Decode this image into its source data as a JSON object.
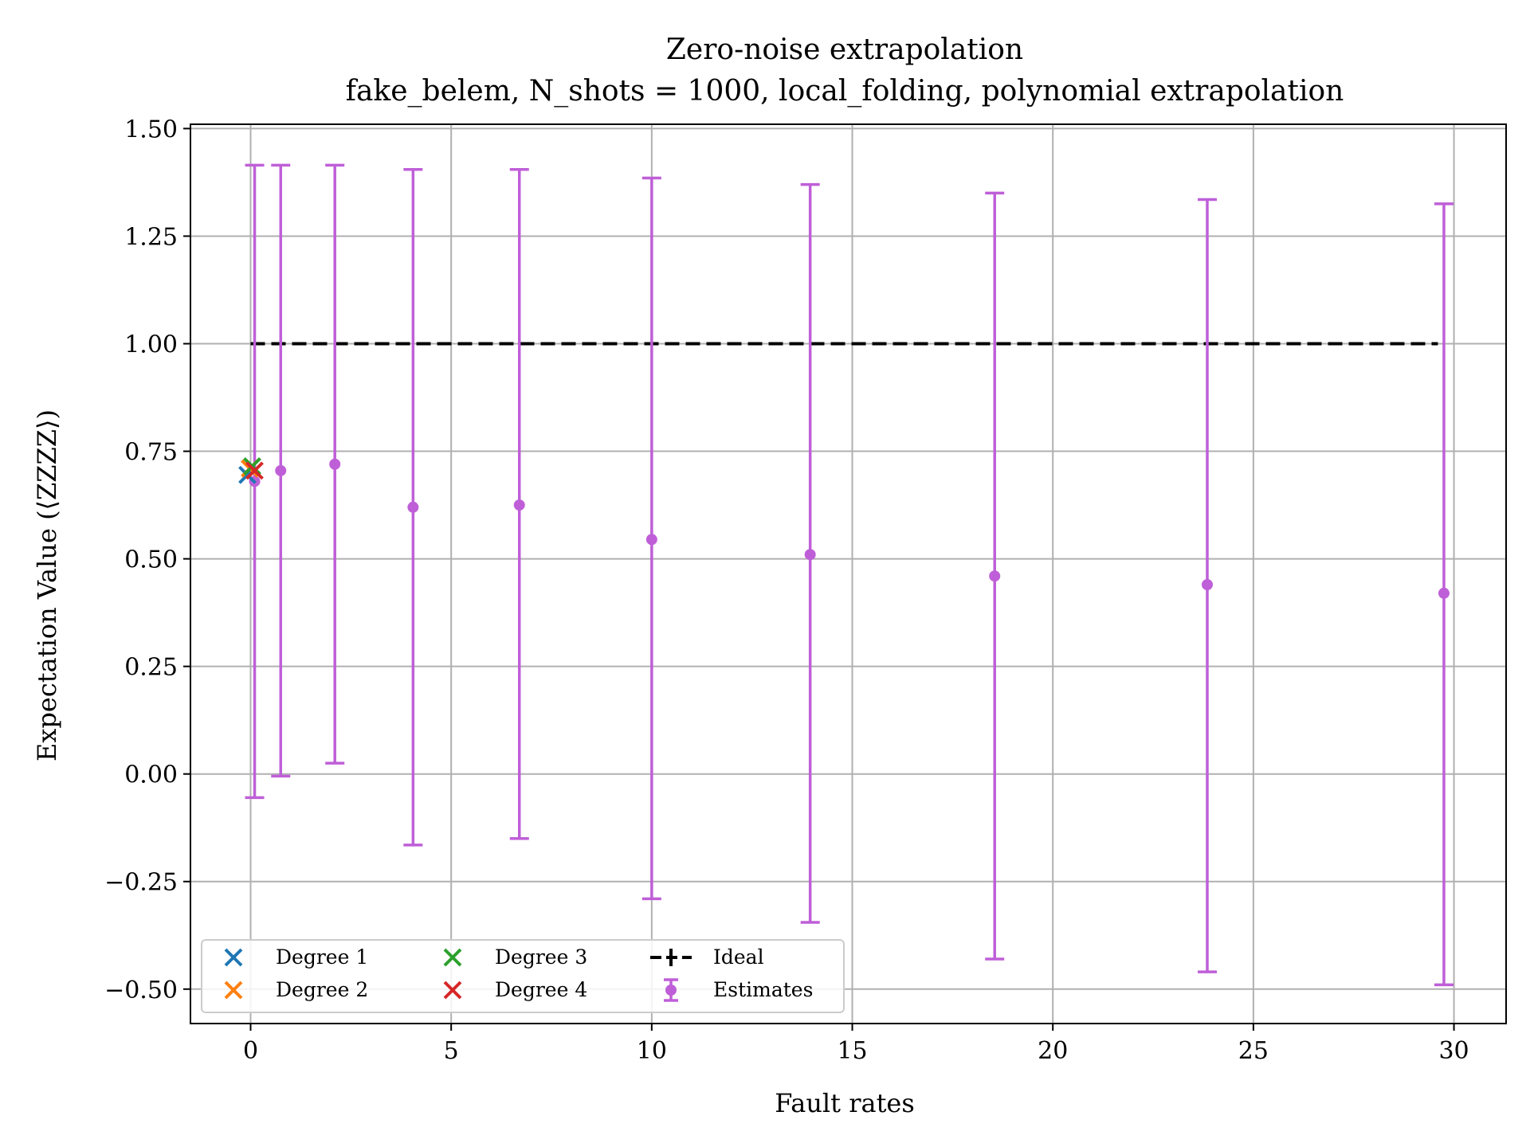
{
  "chart_data": {
    "type": "scatter",
    "title": "Zero-noise extrapolation",
    "subtitle": "fake_belem, N_shots = 1000, local_folding, polynomial extrapolation",
    "xlabel": "Fault rates",
    "ylabel": "Expectation Value (⟨ZZZZ⟩)",
    "xlim": [
      -1.5,
      31.3
    ],
    "ylim": [
      -0.58,
      1.51
    ],
    "grid": true,
    "legend_position": "lower-left",
    "x_ticks": [
      0,
      5,
      10,
      15,
      20,
      25,
      30
    ],
    "x_tick_labels": [
      "0",
      "5",
      "10",
      "15",
      "20",
      "25",
      "30"
    ],
    "y_ticks": [
      -0.5,
      -0.25,
      0,
      0.25,
      0.5,
      0.75,
      1.0,
      1.25,
      1.5
    ],
    "y_tick_labels": [
      "−0.50",
      "−0.25",
      "0.00",
      "0.25",
      "0.50",
      "0.75",
      "1.00",
      "1.25",
      "1.50"
    ],
    "ideal": {
      "name": "Ideal",
      "x": [
        0,
        29.6
      ],
      "y": 1.0,
      "color": "#000000"
    },
    "estimates": {
      "name": "Estimates",
      "color": "#bf5fd8",
      "points": [
        {
          "x": 0.1,
          "y": 0.68,
          "lo": -0.055,
          "hi": 1.415
        },
        {
          "x": 0.75,
          "y": 0.705,
          "lo": -0.005,
          "hi": 1.415
        },
        {
          "x": 2.1,
          "y": 0.72,
          "lo": 0.025,
          "hi": 1.415
        },
        {
          "x": 4.05,
          "y": 0.62,
          "lo": -0.165,
          "hi": 1.405
        },
        {
          "x": 6.7,
          "y": 0.625,
          "lo": -0.15,
          "hi": 1.405
        },
        {
          "x": 10.0,
          "y": 0.545,
          "lo": -0.29,
          "hi": 1.385
        },
        {
          "x": 13.95,
          "y": 0.51,
          "lo": -0.345,
          "hi": 1.37
        },
        {
          "x": 18.55,
          "y": 0.46,
          "lo": -0.43,
          "hi": 1.35
        },
        {
          "x": 23.85,
          "y": 0.44,
          "lo": -0.46,
          "hi": 1.335
        },
        {
          "x": 29.75,
          "y": 0.42,
          "lo": -0.49,
          "hi": 1.325
        }
      ]
    },
    "extrapolations": [
      {
        "name": "Degree 1",
        "x": 0,
        "y": 0.695,
        "color": "#1f77b4"
      },
      {
        "name": "Degree 2",
        "x": 0,
        "y": 0.71,
        "color": "#ff7f0e"
      },
      {
        "name": "Degree 3",
        "x": 0,
        "y": 0.715,
        "color": "#2ca02c"
      },
      {
        "name": "Degree 4",
        "x": 0,
        "y": 0.705,
        "color": "#d62728"
      }
    ]
  }
}
